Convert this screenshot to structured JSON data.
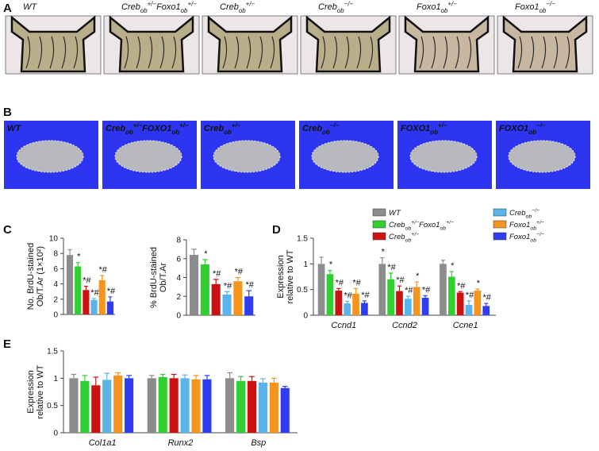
{
  "panel_letters": [
    "A",
    "B",
    "C",
    "D",
    "E"
  ],
  "panel_a": {
    "labels": [
      [
        "WT"
      ],
      [
        "Creb",
        "ob",
        "+/−",
        "Foxo1",
        "ob",
        "+/−"
      ],
      [
        "Creb",
        "ob",
        "+/−"
      ],
      [
        "Creb",
        "ob",
        "−/−"
      ],
      [
        "Foxo1",
        "ob",
        "+/−"
      ],
      [
        "Foxo1",
        "ob",
        "−/−"
      ]
    ]
  },
  "panel_b": {
    "labels": [
      [
        "WT"
      ],
      [
        "Creb",
        "ob",
        "+/−",
        "FOXO1",
        "ob",
        "+/−"
      ],
      [
        "Creb",
        "ob",
        "+/−"
      ],
      [
        "Creb",
        "ob",
        "−/−"
      ],
      [
        "FOXO1",
        "ob",
        "+/−"
      ],
      [
        "FOXO1",
        "ob",
        "−/−"
      ]
    ]
  },
  "chart_data": [
    {
      "type": "bar",
      "ylabel": [
        "No. BrdU-stained",
        "Ob/T.Ar (1×10²)"
      ],
      "values": [
        7.8,
        6.3,
        3.2,
        1.9,
        4.5,
        1.7
      ],
      "errors": [
        0.7,
        0.5,
        0.5,
        0.2,
        0.6,
        0.6
      ],
      "annotations": [
        null,
        "*",
        "*#",
        "*#",
        "*#",
        "*#"
      ],
      "colors": [
        "#8c8c8c",
        "#2fd02f",
        "#cc1111",
        "#5ab4ea",
        "#f7941d",
        "#2f3cf0"
      ],
      "ylim": [
        0,
        10
      ],
      "yticks": [
        0,
        2,
        4,
        6,
        8,
        10
      ]
    },
    {
      "type": "bar",
      "ylabel": [
        "% BrdU-stained",
        "Ob/T.Ar"
      ],
      "values": [
        6.4,
        5.4,
        3.3,
        2.2,
        3.6,
        2.0
      ],
      "errors": [
        0.6,
        0.5,
        0.5,
        0.3,
        0.4,
        0.6
      ],
      "annotations": [
        null,
        "*",
        "*#",
        "*#",
        "*#",
        "*#"
      ],
      "colors": [
        "#8c8c8c",
        "#2fd02f",
        "#cc1111",
        "#5ab4ea",
        "#f7941d",
        "#2f3cf0"
      ],
      "ylim": [
        0,
        8
      ],
      "yticks": [
        0,
        2,
        4,
        6,
        8
      ]
    },
    {
      "type": "grouped-bar",
      "ylabel": [
        "Expression",
        "relative to WT"
      ],
      "categories": [
        "Ccnd1",
        "Ccnd2",
        "Ccne1"
      ],
      "ylim": [
        0,
        1.5
      ],
      "yticks": [
        0,
        0.5,
        1,
        1.5
      ],
      "legend": true,
      "series": [
        {
          "name": [
            "WT"
          ],
          "color": "#8c8c8c",
          "values": [
            1.0,
            1.0,
            1.0
          ],
          "errors": [
            0.13,
            0.12,
            0.07
          ],
          "significance": [
            null,
            "*",
            null
          ]
        },
        {
          "name": [
            "Creb",
            "ob",
            "+/−",
            "Foxo1",
            "ob",
            "+/−"
          ],
          "color": "#2fd02f",
          "values": [
            0.8,
            0.7,
            0.75
          ],
          "errors": [
            0.07,
            0.12,
            0.1
          ],
          "significance": [
            "*",
            "*#",
            "*"
          ]
        },
        {
          "name": [
            "Creb",
            "ob",
            "+/−"
          ],
          "color": "#cc1111",
          "values": [
            0.48,
            0.47,
            0.44
          ],
          "errors": [
            0.04,
            0.1,
            0.02
          ],
          "significance": [
            "*#",
            "*#",
            "*#"
          ]
        },
        {
          "name": [
            "Creb",
            "ob",
            "−/−"
          ],
          "color": "#5ab4ea",
          "values": [
            0.23,
            0.32,
            0.2
          ],
          "errors": [
            0.04,
            0.05,
            0.08
          ],
          "significance": [
            "*#",
            "*#",
            "*#"
          ]
        },
        {
          "name": [
            "Foxo1",
            "ob",
            "+/−"
          ],
          "color": "#f7941d",
          "values": [
            0.42,
            0.55,
            0.48
          ],
          "errors": [
            0.1,
            0.1,
            0.03
          ],
          "significance": [
            "*#",
            "*",
            "*"
          ]
        },
        {
          "name": [
            "Foxo1",
            "ob",
            "−/−"
          ],
          "color": "#2f3cf0",
          "values": [
            0.24,
            0.34,
            0.18
          ],
          "errors": [
            0.04,
            0.04,
            0.05
          ],
          "significance": [
            "*#",
            "*#",
            "*#"
          ]
        }
      ]
    },
    {
      "type": "grouped-bar",
      "ylabel": [
        "Expression",
        "relative to WT"
      ],
      "categories": [
        "Col1a1",
        "Runx2",
        "Bsp"
      ],
      "ylim": [
        0,
        1.5
      ],
      "yticks": [
        0,
        0.5,
        1,
        1.5
      ],
      "legend": false,
      "series": [
        {
          "color": "#8c8c8c",
          "values": [
            1.0,
            1.0,
            1.0
          ],
          "errors": [
            0.07,
            0.05,
            0.1
          ]
        },
        {
          "color": "#2fd02f",
          "values": [
            0.95,
            1.02,
            0.95
          ],
          "errors": [
            0.1,
            0.05,
            0.08
          ]
        },
        {
          "color": "#cc1111",
          "values": [
            0.87,
            1.0,
            0.95
          ],
          "errors": [
            0.15,
            0.07,
            0.08
          ]
        },
        {
          "color": "#5ab4ea",
          "values": [
            0.97,
            1.0,
            0.92
          ],
          "errors": [
            0.12,
            0.06,
            0.07
          ]
        },
        {
          "color": "#f7941d",
          "values": [
            1.05,
            0.98,
            0.92
          ],
          "errors": [
            0.05,
            0.07,
            0.08
          ]
        },
        {
          "color": "#2f3cf0",
          "values": [
            1.0,
            0.98,
            0.82
          ],
          "errors": [
            0.05,
            0.07,
            0.03
          ]
        }
      ]
    }
  ]
}
